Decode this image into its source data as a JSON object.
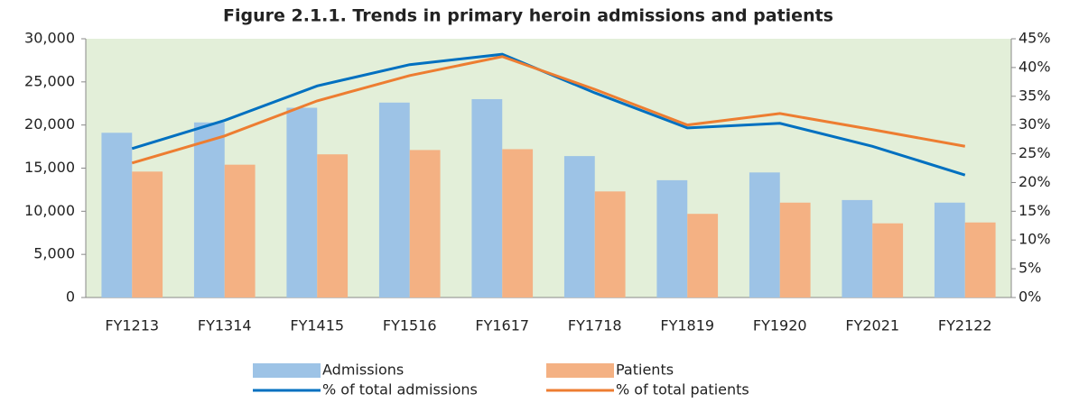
{
  "chart_data": {
    "type": "bar",
    "title": "Figure 2.1.1. Trends in primary heroin admissions and patients",
    "categories": [
      "FY1213",
      "FY1314",
      "FY1415",
      "FY1516",
      "FY1617",
      "FY1718",
      "FY1819",
      "FY1920",
      "FY2021",
      "FY2122"
    ],
    "series": [
      {
        "name": "Admissions",
        "type": "bar",
        "color": "#9dc3e6",
        "values": [
          19100,
          20300,
          22000,
          22600,
          23000,
          16400,
          13600,
          14500,
          11300,
          11000
        ]
      },
      {
        "name": "Patients",
        "type": "bar",
        "color": "#f4b183",
        "values": [
          14600,
          15400,
          16600,
          17100,
          17200,
          12300,
          9700,
          11000,
          8600,
          8700
        ]
      },
      {
        "name": "% of total admissions",
        "type": "line",
        "axis": "y2",
        "color": "#0070c0",
        "values": [
          25.9,
          30.8,
          36.8,
          40.5,
          42.3,
          35.6,
          29.5,
          30.3,
          26.3,
          21.3
        ]
      },
      {
        "name": "% of total patients",
        "type": "line",
        "axis": "y2",
        "color": "#ed7d31",
        "values": [
          23.4,
          28.1,
          34.2,
          38.6,
          41.9,
          36.2,
          30.0,
          32.0,
          29.2,
          26.3
        ]
      }
    ],
    "ylim": [
      0,
      30000
    ],
    "yticks": [
      0,
      {
        "value": 5000,
        "label": "5,000"
      },
      {
        "value": 10000,
        "label": "10,000"
      },
      {
        "value": 15000,
        "label": "15,000"
      },
      {
        "value": 20000,
        "label": "20,000"
      },
      {
        "value": 25000,
        "label": "25,000"
      },
      {
        "value": 30000,
        "label": "30,000"
      }
    ],
    "y2lim": [
      0,
      45
    ],
    "y2ticks": [
      {
        "value": 0,
        "label": "0%"
      },
      {
        "value": 5,
        "label": "5%"
      },
      {
        "value": 10,
        "label": "10%"
      },
      {
        "value": 15,
        "label": "15%"
      },
      {
        "value": 20,
        "label": "20%"
      },
      {
        "value": 25,
        "label": "25%"
      },
      {
        "value": 30,
        "label": "30%"
      },
      {
        "value": 35,
        "label": "35%"
      },
      {
        "value": 40,
        "label": "40%"
      },
      {
        "value": 45,
        "label": "45%"
      }
    ],
    "plot_background": "#e3efd9",
    "legend": "bottom"
  }
}
